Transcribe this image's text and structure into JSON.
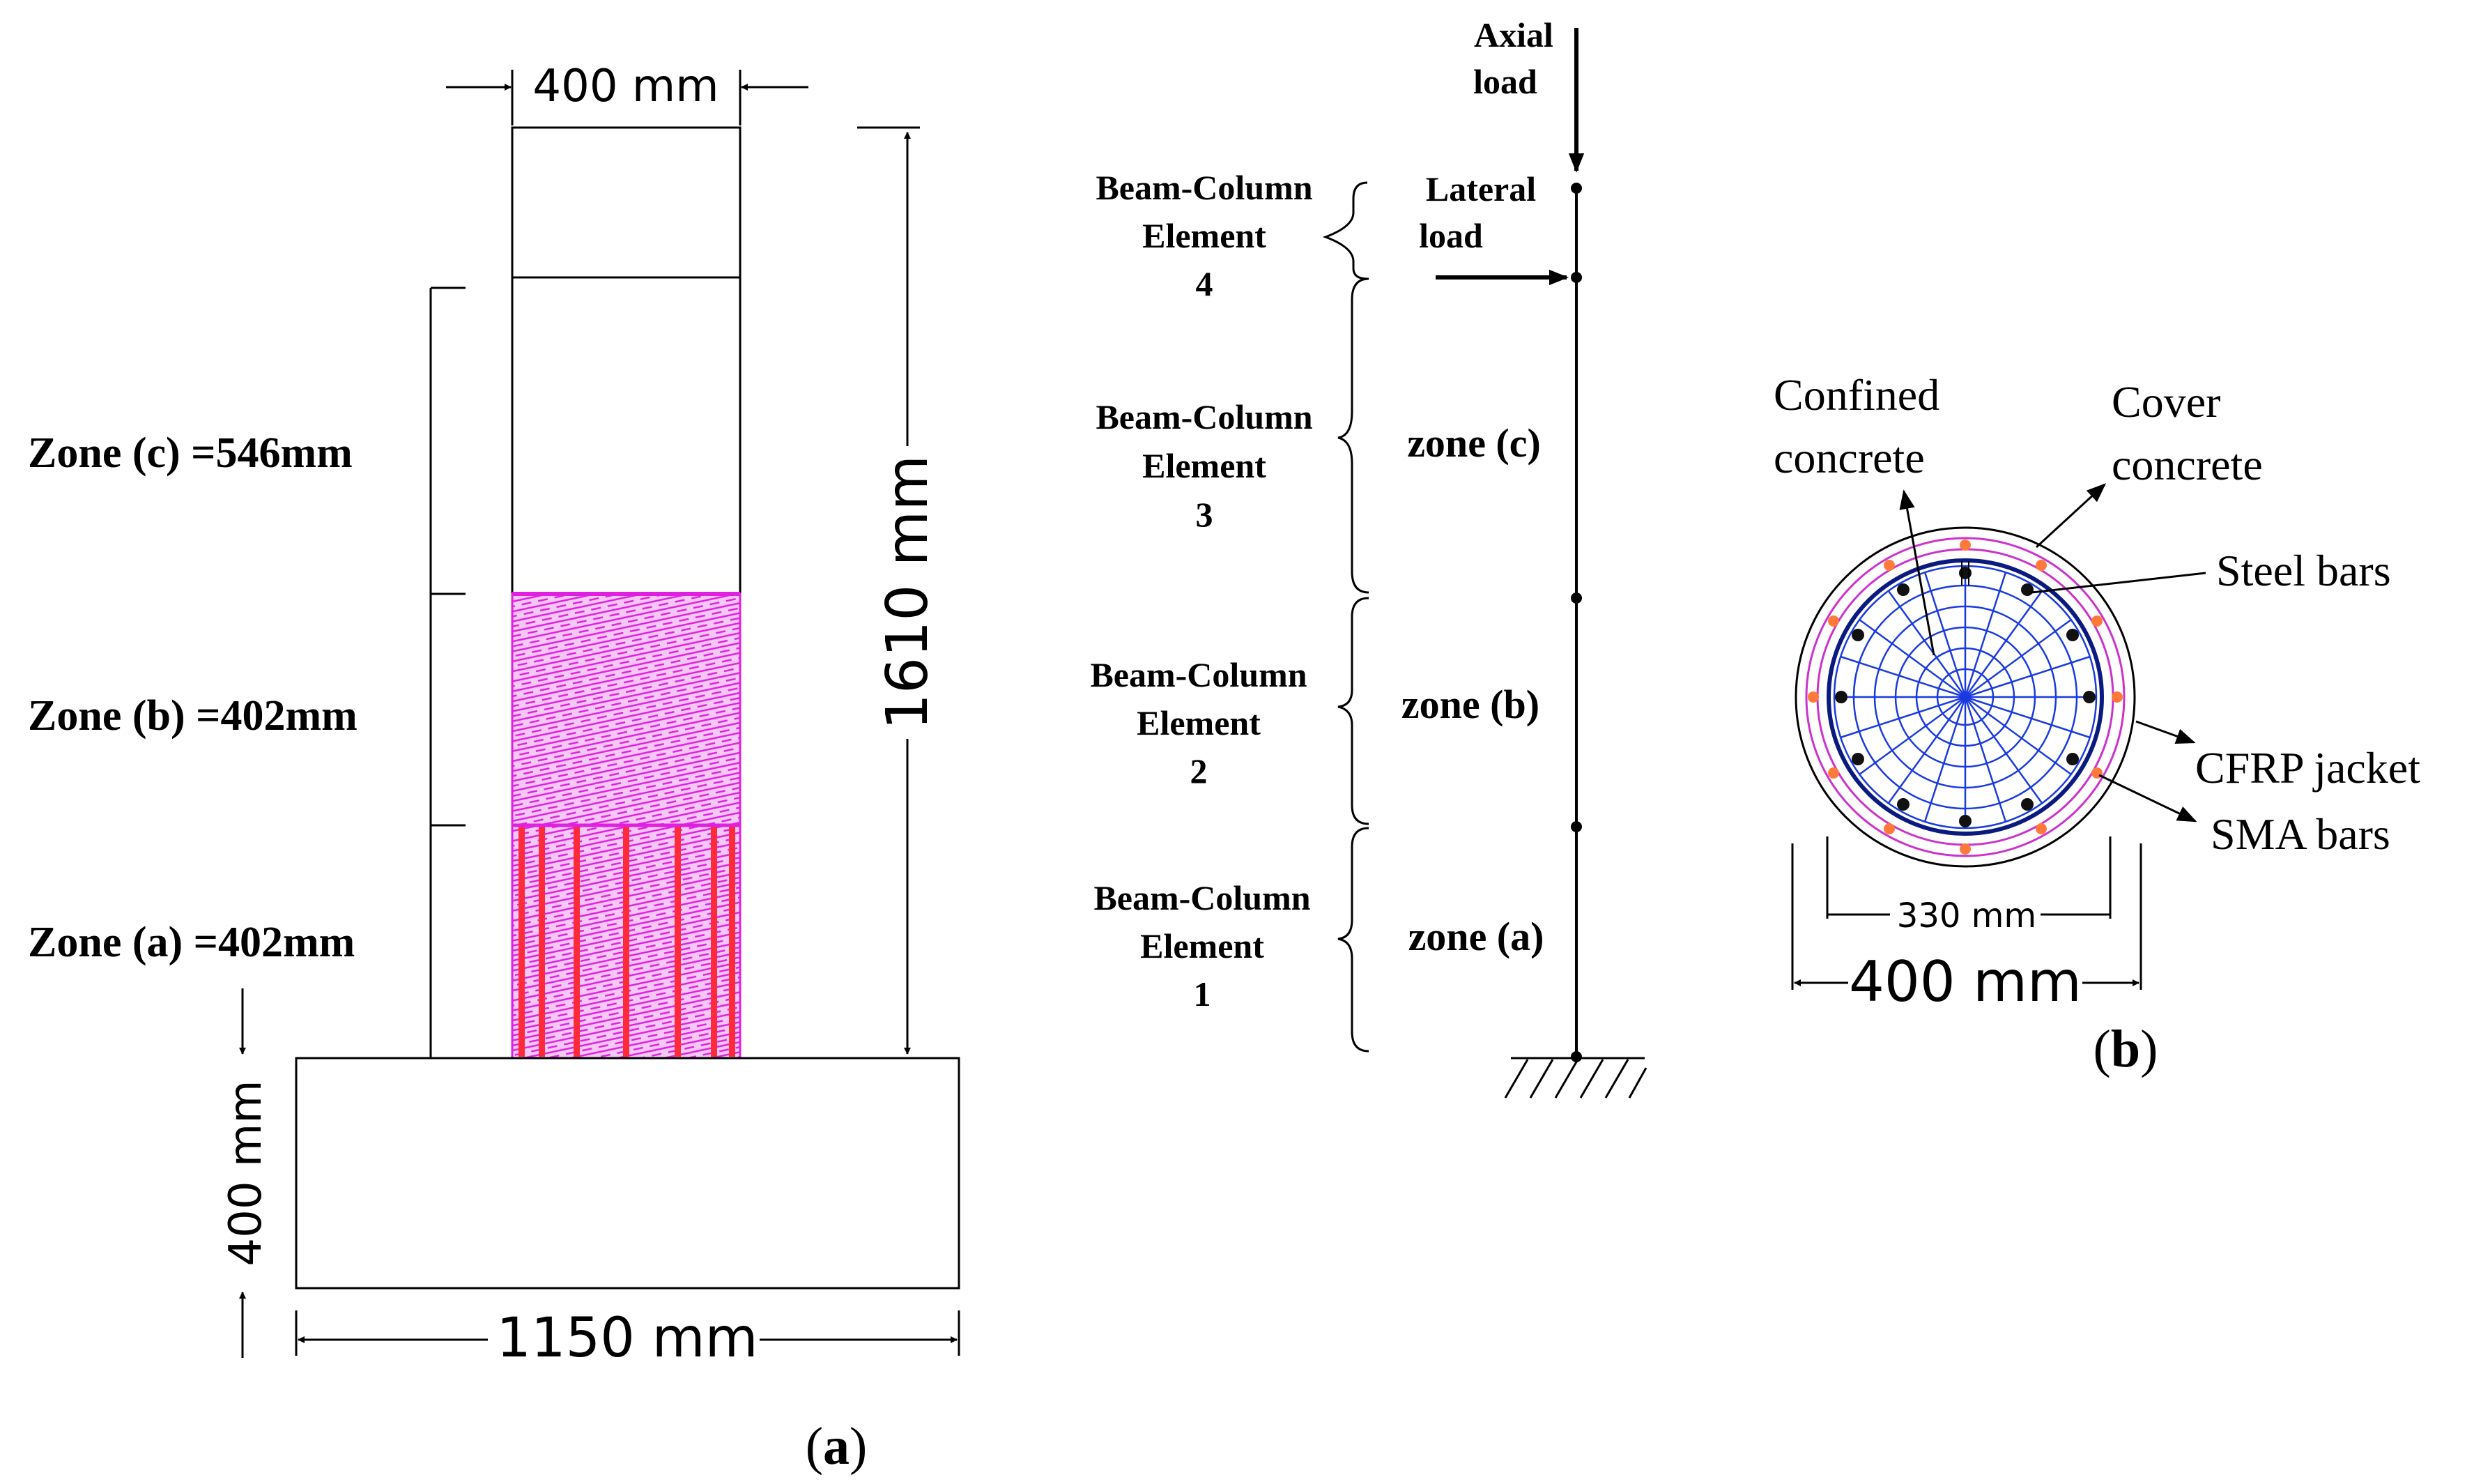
{
  "figure_a": {
    "caption_open": "(",
    "caption_letter": "a",
    "caption_close": ")",
    "column_width": "400 mm",
    "column_height": "1610 mm",
    "footing_width": "1150 mm",
    "footing_height": "400 mm",
    "zones": {
      "c": "Zone (c) =546mm",
      "b": "Zone (b) =402mm",
      "a": "Zone (a) =402mm"
    },
    "colors": {
      "cfrp_hatch": "#e020e0",
      "sma_bars": "#ff2a3a"
    }
  },
  "model": {
    "axial_load": [
      "Axial",
      "load"
    ],
    "lateral_load": [
      "Lateral",
      "load"
    ],
    "elements": [
      {
        "lines": [
          "Beam-Column",
          "Element",
          "4"
        ],
        "zone": ""
      },
      {
        "lines": [
          "Beam-Column",
          "Element",
          "3"
        ],
        "zone": "zone (c)"
      },
      {
        "lines": [
          "Beam-Column",
          "Element",
          "2"
        ],
        "zone": "zone (b)"
      },
      {
        "lines": [
          "Beam-Column",
          "Element",
          "1"
        ],
        "zone": "zone (a)"
      }
    ]
  },
  "figure_b": {
    "caption_open": "(",
    "caption_letter": "b",
    "caption_close": ")",
    "confined_concrete": [
      "Confined",
      "concrete"
    ],
    "cover_concrete": [
      "Cover",
      "concrete"
    ],
    "steel_bars": "Steel bars",
    "cfrp_jacket": "CFRP jacket",
    "sma_bars": "SMA bars",
    "core_diameter": "330 mm",
    "outer_diameter": "400 mm",
    "colors": {
      "mesh": "#1a3adf",
      "jacket": "#cc33cc",
      "sma_dots": "#ff7a3a"
    }
  }
}
